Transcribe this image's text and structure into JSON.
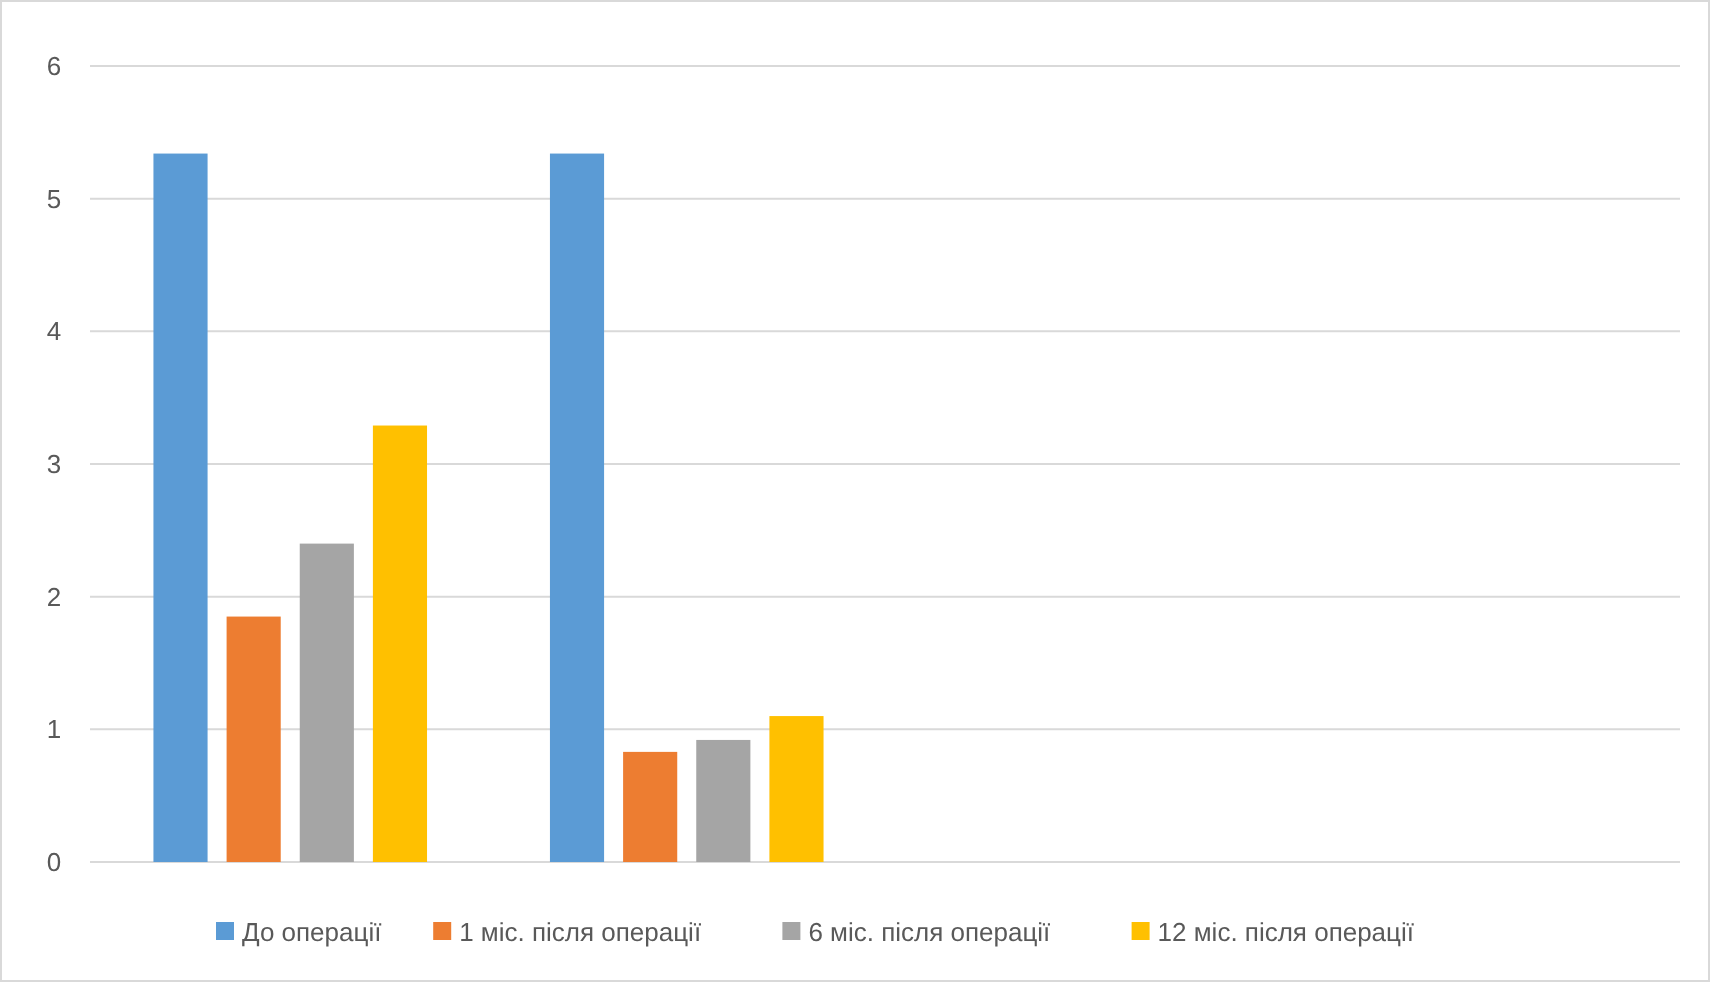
{
  "chart_data": {
    "type": "bar",
    "categories": [
      null,
      null,
      null,
      null
    ],
    "series": [
      {
        "name": "До операції",
        "color": "#5b9bd5",
        "values": [
          5.34,
          5.34,
          null,
          null
        ]
      },
      {
        "name": "1 міс. після операції",
        "color": "#ed7d31",
        "values": [
          1.85,
          0.83,
          null,
          null
        ]
      },
      {
        "name": "6 міс. після операції",
        "color": "#a5a5a5",
        "values": [
          2.4,
          0.92,
          null,
          null
        ]
      },
      {
        "name": "12 міс. після операції",
        "color": "#ffc000",
        "values": [
          3.29,
          1.1,
          null,
          null
        ]
      }
    ],
    "ylim": [
      0,
      6
    ],
    "yticks": [
      0,
      1,
      2,
      3,
      4,
      5,
      6
    ],
    "grid": "y",
    "legend": "bottom"
  }
}
